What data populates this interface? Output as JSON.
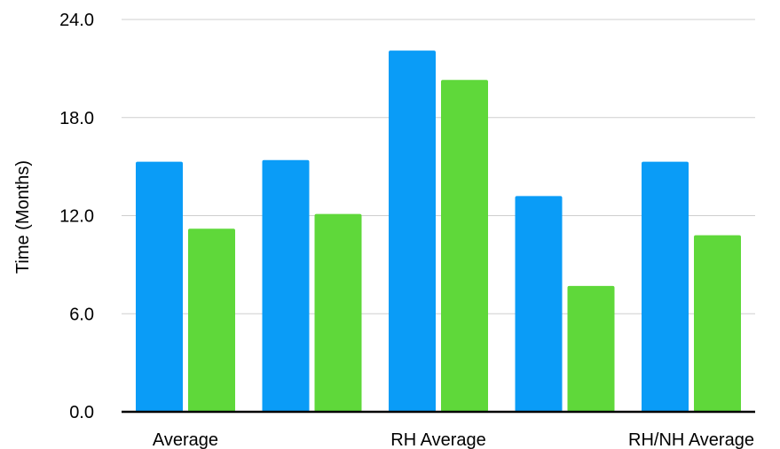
{
  "chart_data": {
    "type": "bar",
    "categories": [
      "Average",
      "",
      "RH Average",
      "",
      "RH/NH Average"
    ],
    "series": [
      {
        "values": [
          15.3,
          15.4,
          22.1,
          13.2,
          15.3
        ]
      },
      {
        "values": [
          11.2,
          12.1,
          20.3,
          7.7,
          10.8
        ]
      }
    ],
    "ylabel": "Time (Months)",
    "ylim": [
      0,
      24
    ],
    "yticks": [
      "0.0",
      "6.0",
      "12.0",
      "18.0",
      "24.0"
    ],
    "ytick_values": [
      0,
      6,
      12,
      18,
      24
    ],
    "grid": true,
    "legend": "none"
  },
  "colors": {
    "series": [
      "#0a9cf7",
      "#5fd83a"
    ],
    "grid": "#cfcfcf",
    "axis": "#000000"
  }
}
